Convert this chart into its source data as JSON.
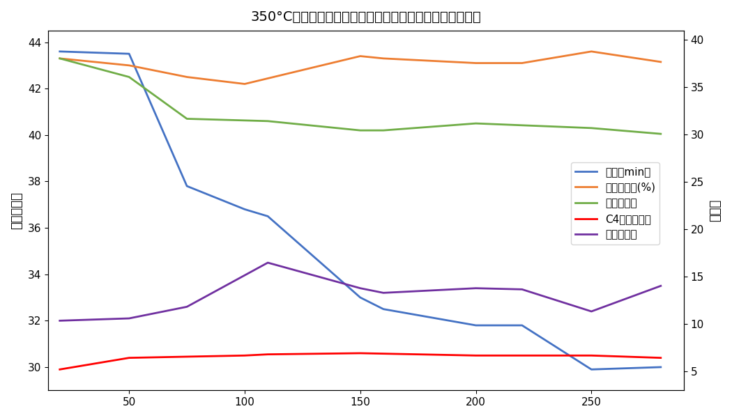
{
  "title": "350°C下乙醇转化率和各种生成物的选择性随时间变化曲线",
  "ylabel_left": "乙醇转化率",
  "ylabel_right": "选择性",
  "legend_labels": [
    "时间（min）",
    "乙醇转化率(%)",
    "乙烯选择性",
    "C4烯烃选择性",
    "乙醇选择性"
  ],
  "x_blue": [
    20,
    50,
    75,
    100,
    110,
    150,
    160,
    200,
    220,
    250,
    280
  ],
  "y_blue": [
    43.6,
    43.5,
    37.8,
    36.8,
    36.5,
    33.0,
    32.5,
    31.8,
    31.8,
    29.9,
    30.0
  ],
  "x_orange": [
    20,
    50,
    75,
    100,
    150,
    160,
    200,
    220,
    250,
    280
  ],
  "y_orange": [
    43.3,
    43.0,
    42.5,
    42.2,
    43.4,
    43.3,
    43.1,
    43.1,
    43.6,
    43.15
  ],
  "x_green": [
    20,
    50,
    75,
    110,
    150,
    160,
    200,
    250,
    280
  ],
  "y_green": [
    43.3,
    42.5,
    40.7,
    40.6,
    40.2,
    40.2,
    40.5,
    40.3,
    40.05
  ],
  "x_red": [
    20,
    50,
    100,
    110,
    150,
    200,
    220,
    250,
    280
  ],
  "y_red": [
    29.9,
    30.4,
    30.5,
    30.55,
    30.6,
    30.5,
    30.5,
    30.5,
    30.4
  ],
  "x_purple": [
    20,
    50,
    75,
    110,
    150,
    160,
    200,
    220,
    250,
    280
  ],
  "y_purple": [
    32.0,
    32.1,
    32.6,
    34.5,
    33.4,
    33.2,
    33.4,
    33.35,
    32.4,
    33.5
  ],
  "color_blue": "#4472C4",
  "color_orange": "#ED7D31",
  "color_green": "#70AD47",
  "color_red": "#FF0000",
  "color_purple": "#7030A0",
  "ylim_left": [
    29.0,
    44.5
  ],
  "yticks_left": [
    30,
    32,
    34,
    36,
    38,
    40,
    42,
    44
  ],
  "xlim": [
    15,
    290
  ],
  "xticks": [
    50,
    100,
    150,
    200,
    250
  ],
  "ylim_right": [
    3.0,
    41.0
  ],
  "yticks_right": [
    5,
    10,
    15,
    20,
    25,
    30,
    35,
    40
  ],
  "linewidth": 2.0,
  "title_fontsize": 14,
  "axis_label_fontsize": 13,
  "legend_fontsize": 11,
  "background_color": "#ffffff"
}
